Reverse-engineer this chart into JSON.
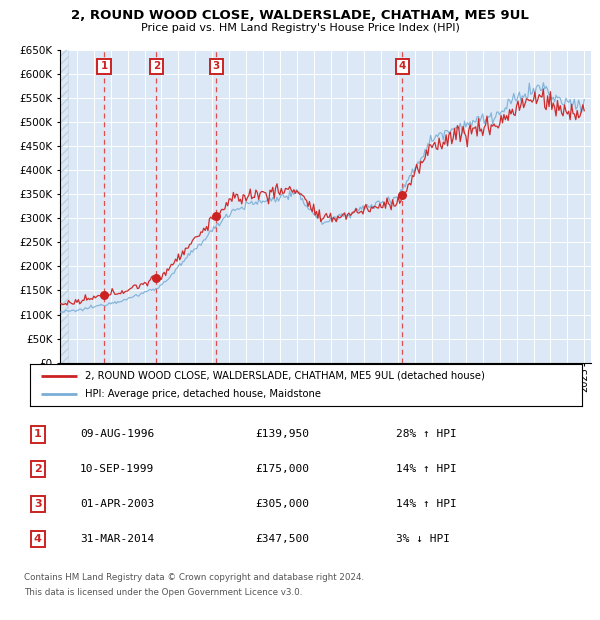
{
  "title": "2, ROUND WOOD CLOSE, WALDERSLADE, CHATHAM, ME5 9UL",
  "subtitle": "Price paid vs. HM Land Registry's House Price Index (HPI)",
  "legend_label_red": "2, ROUND WOOD CLOSE, WALDERSLADE, CHATHAM, ME5 9UL (detached house)",
  "legend_label_blue": "HPI: Average price, detached house, Maidstone",
  "footer1": "Contains HM Land Registry data © Crown copyright and database right 2024.",
  "footer2": "This data is licensed under the Open Government Licence v3.0.",
  "sales": [
    {
      "num": 1,
      "date_label": "09-AUG-1996",
      "price_label": "£139,950",
      "pct_label": "28% ↑ HPI",
      "year": 1996.6,
      "price": 139950
    },
    {
      "num": 2,
      "date_label": "10-SEP-1999",
      "price_label": "£175,000",
      "pct_label": "14% ↑ HPI",
      "year": 1999.7,
      "price": 175000
    },
    {
      "num": 3,
      "date_label": "01-APR-2003",
      "price_label": "£305,000",
      "pct_label": "14% ↑ HPI",
      "year": 2003.25,
      "price": 305000
    },
    {
      "num": 4,
      "date_label": "31-MAR-2014",
      "price_label": "£347,500",
      "pct_label": "3% ↓ HPI",
      "year": 2014.25,
      "price": 347500
    }
  ],
  "ylim": [
    0,
    650000
  ],
  "ytick_step": 50000,
  "xstart": 1994,
  "xend": 2025,
  "background_color": "#dce8f5",
  "red_color": "#cc2222",
  "blue_color": "#7aaed6",
  "vline_color": "#dd3333",
  "grid_color": "#ffffff",
  "table_bg": "#ffffff",
  "hatch_color": "#c0d0e0"
}
